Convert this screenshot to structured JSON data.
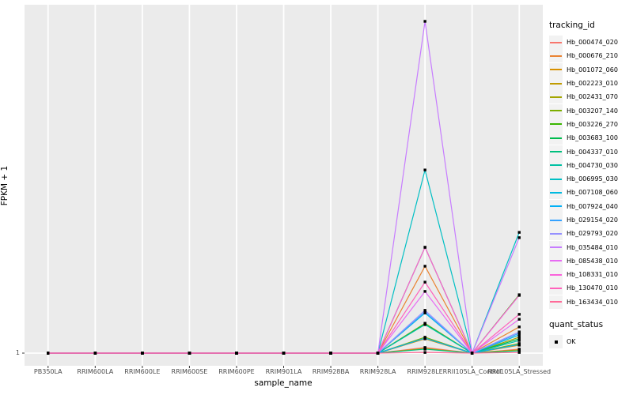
{
  "legend": {
    "tracking_title": "tracking_id",
    "quant_title": "quant_status",
    "quant_label": "OK"
  },
  "chart_data": {
    "type": "line",
    "title": "",
    "xlabel": "sample_name",
    "ylabel": "FPKM + 1",
    "y_ticks": [
      "1"
    ],
    "y_scale_note": "Only labeled y tick is 1 (baseline). Series values below are relative heights above the FPKM+1=1 baseline, where 1.0 = tallest peak near top of panel.",
    "grid": "ggplot-gray-panel-white-gridlines",
    "legend_position": "right",
    "marker": {
      "shape": "square",
      "color": "#000000",
      "legend_label": "OK"
    },
    "layout": {
      "panel_bg": "#EBEBEB",
      "gridline": "#FFFFFF",
      "tick_color": "#333333"
    },
    "categories": [
      "PB350LA",
      "RRIM600LA",
      "RRIM600LE",
      "RRIM600SE",
      "RRIM600PE",
      "RRIM901LA",
      "RRIM928BA",
      "RRIM928LA",
      "RRIM928LE",
      "RRII105LA_Control",
      "RRII105LA_Stressed"
    ],
    "series": [
      {
        "name": "Hb_000474_020",
        "color": "#F8766D",
        "values": [
          0,
          0,
          0,
          0,
          0,
          0,
          0,
          0,
          0.017,
          0,
          0.012
        ]
      },
      {
        "name": "Hb_000676_210",
        "color": "#EA8331",
        "values": [
          0,
          0,
          0,
          0,
          0,
          0,
          0,
          0,
          0.262,
          0,
          0.079
        ]
      },
      {
        "name": "Hb_001072_060",
        "color": "#D89000",
        "values": [
          0,
          0,
          0,
          0,
          0,
          0,
          0,
          0,
          0.043,
          0,
          0.024
        ]
      },
      {
        "name": "Hb_002223_010",
        "color": "#C09B00",
        "values": [
          0,
          0,
          0,
          0,
          0,
          0,
          0,
          0,
          0.014,
          0,
          0.01
        ]
      },
      {
        "name": "Hb_002431_070",
        "color": "#A3A500",
        "values": [
          0,
          0,
          0,
          0,
          0,
          0,
          0,
          0,
          0.09,
          0,
          0.048
        ]
      },
      {
        "name": "Hb_003207_140",
        "color": "#7CAE00",
        "values": [
          0,
          0,
          0,
          0,
          0,
          0,
          0,
          0,
          0.048,
          0,
          0.029
        ]
      },
      {
        "name": "Hb_003226_270",
        "color": "#39B600",
        "values": [
          0,
          0,
          0,
          0,
          0,
          0,
          0,
          0,
          0.319,
          0,
          0.176
        ]
      },
      {
        "name": "Hb_003683_100",
        "color": "#00BB4E",
        "values": [
          0,
          0,
          0,
          0,
          0,
          0,
          0,
          0,
          0.088,
          0,
          0.043
        ]
      },
      {
        "name": "Hb_004337_010",
        "color": "#00BF7D",
        "values": [
          0,
          0,
          0,
          0,
          0,
          0,
          0,
          0,
          0.012,
          0,
          0.007
        ]
      },
      {
        "name": "Hb_004730_030",
        "color": "#00C1A3",
        "values": [
          0,
          0,
          0,
          0,
          0,
          0,
          0,
          0,
          0.086,
          0,
          0.038
        ]
      },
      {
        "name": "Hb_006995_030",
        "color": "#00BFC4",
        "values": [
          0,
          0,
          0,
          0,
          0,
          0,
          0,
          0,
          0.552,
          0,
          0.364
        ]
      },
      {
        "name": "Hb_007108_060",
        "color": "#00BAE0",
        "values": [
          0,
          0,
          0,
          0,
          0,
          0,
          0,
          0,
          0.121,
          0,
          0.055
        ]
      },
      {
        "name": "Hb_007924_040",
        "color": "#00B0F6",
        "values": [
          0,
          0,
          0,
          0,
          0,
          0,
          0,
          0,
          0.045,
          0,
          0.026
        ]
      },
      {
        "name": "Hb_029154_020",
        "color": "#35A2FF",
        "values": [
          0,
          0,
          0,
          0,
          0,
          0,
          0,
          0,
          0.124,
          0,
          0.06
        ]
      },
      {
        "name": "Hb_029793_020",
        "color": "#9590FF",
        "values": [
          0,
          0,
          0,
          0,
          0,
          0,
          0,
          0,
          0.129,
          0,
          0.064
        ]
      },
      {
        "name": "Hb_035484_010",
        "color": "#C77CFF",
        "values": [
          0,
          0,
          0,
          0,
          0,
          0,
          0,
          0,
          1.0,
          0,
          0.348
        ]
      },
      {
        "name": "Hb_085438_010",
        "color": "#E76BF3",
        "values": [
          0,
          0,
          0,
          0,
          0,
          0,
          0,
          0,
          0.186,
          0,
          0.102
        ]
      },
      {
        "name": "Hb_108331_010",
        "color": "#FA62DB",
        "values": [
          0,
          0,
          0,
          0,
          0,
          0,
          0,
          0,
          0.319,
          0,
          0.174
        ]
      },
      {
        "name": "Hb_130470_010",
        "color": "#FF62BC",
        "values": [
          0,
          0,
          0,
          0,
          0,
          0,
          0,
          0,
          0.214,
          0,
          0.117
        ]
      },
      {
        "name": "Hb_163434_010",
        "color": "#FF6A98",
        "values": [
          0,
          0,
          0,
          0,
          0,
          0,
          0,
          0,
          0.002,
          0,
          0.002
        ]
      }
    ]
  }
}
